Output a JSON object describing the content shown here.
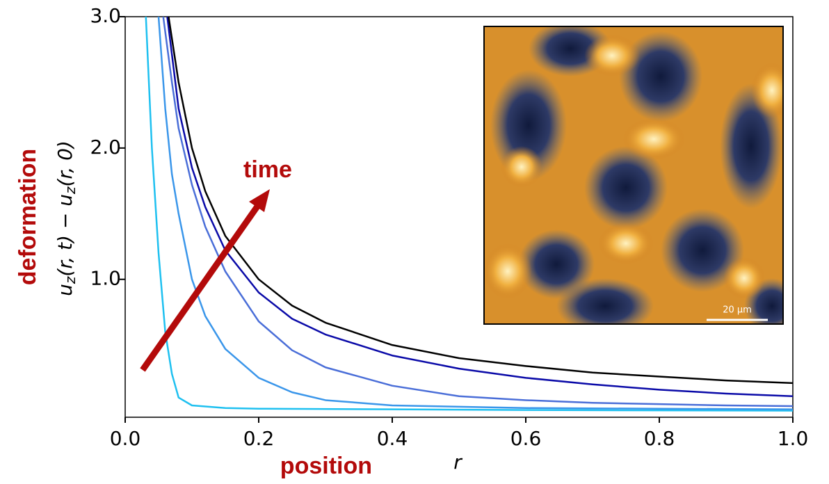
{
  "chart_data": {
    "type": "line",
    "title_annotation": "time",
    "x_label_bold": "position",
    "x_label_var": "r",
    "y_label_bold": "deformation",
    "y_label_parts": [
      "u",
      "z",
      "(r, t) − u",
      "z",
      "(r, 0)"
    ],
    "inset_scale_label": "20 µm",
    "xlim": [
      0.0,
      1.0
    ],
    "ylim": [
      -0.05,
      3.0
    ],
    "xticks": [
      {
        "value": 0,
        "label": "0.0"
      },
      {
        "value": 0.2,
        "label": "0.2"
      },
      {
        "value": 0.4,
        "label": "0.4"
      },
      {
        "value": 0.6,
        "label": "0.6"
      },
      {
        "value": 0.8,
        "label": "0.8"
      },
      {
        "value": 1,
        "label": "1.0"
      }
    ],
    "yticks": [
      {
        "value": 1,
        "label": "1.0"
      },
      {
        "value": 2,
        "label": "2.0"
      },
      {
        "value": 3,
        "label": "3.0"
      }
    ],
    "series": [
      {
        "color": "#1ec0f0",
        "x": [
          0.031,
          0.04,
          0.05,
          0.06,
          0.07,
          0.08,
          0.1,
          0.15,
          0.2,
          0.4,
          0.6,
          1.0
        ],
        "values": [
          3.0,
          2.0,
          1.2,
          0.6,
          0.28,
          0.1,
          0.04,
          0.02,
          0.015,
          0.01,
          0.005,
          0.0
        ]
      },
      {
        "color": "#3a96ea",
        "x": [
          0.05,
          0.06,
          0.07,
          0.08,
          0.1,
          0.12,
          0.15,
          0.2,
          0.25,
          0.3,
          0.4,
          0.5,
          0.6,
          0.8,
          1.0
        ],
        "values": [
          3.0,
          2.3,
          1.8,
          1.5,
          1.0,
          0.72,
          0.47,
          0.25,
          0.14,
          0.08,
          0.04,
          0.03,
          0.02,
          0.015,
          0.01
        ]
      },
      {
        "color": "#4a6ed8",
        "x": [
          0.057,
          0.07,
          0.08,
          0.1,
          0.12,
          0.15,
          0.2,
          0.25,
          0.3,
          0.4,
          0.5,
          0.6,
          0.7,
          0.8,
          0.9,
          1.0
        ],
        "values": [
          3.0,
          2.5,
          2.15,
          1.72,
          1.4,
          1.06,
          0.68,
          0.46,
          0.33,
          0.19,
          0.11,
          0.08,
          0.06,
          0.05,
          0.04,
          0.035
        ]
      },
      {
        "color": "#0a0aa8",
        "x": [
          0.063,
          0.08,
          0.1,
          0.12,
          0.15,
          0.2,
          0.25,
          0.3,
          0.4,
          0.5,
          0.6,
          0.7,
          0.8,
          0.9,
          1.0
        ],
        "values": [
          3.0,
          2.3,
          1.85,
          1.55,
          1.22,
          0.9,
          0.7,
          0.58,
          0.42,
          0.32,
          0.25,
          0.2,
          0.16,
          0.13,
          0.11
        ]
      },
      {
        "color": "#000000",
        "x": [
          0.065,
          0.08,
          0.1,
          0.12,
          0.15,
          0.2,
          0.25,
          0.3,
          0.4,
          0.5,
          0.6,
          0.7,
          0.8,
          0.9,
          1.0
        ],
        "values": [
          3.0,
          2.5,
          2.0,
          1.67,
          1.33,
          1.0,
          0.8,
          0.67,
          0.5,
          0.4,
          0.34,
          0.29,
          0.26,
          0.23,
          0.21
        ]
      }
    ]
  }
}
